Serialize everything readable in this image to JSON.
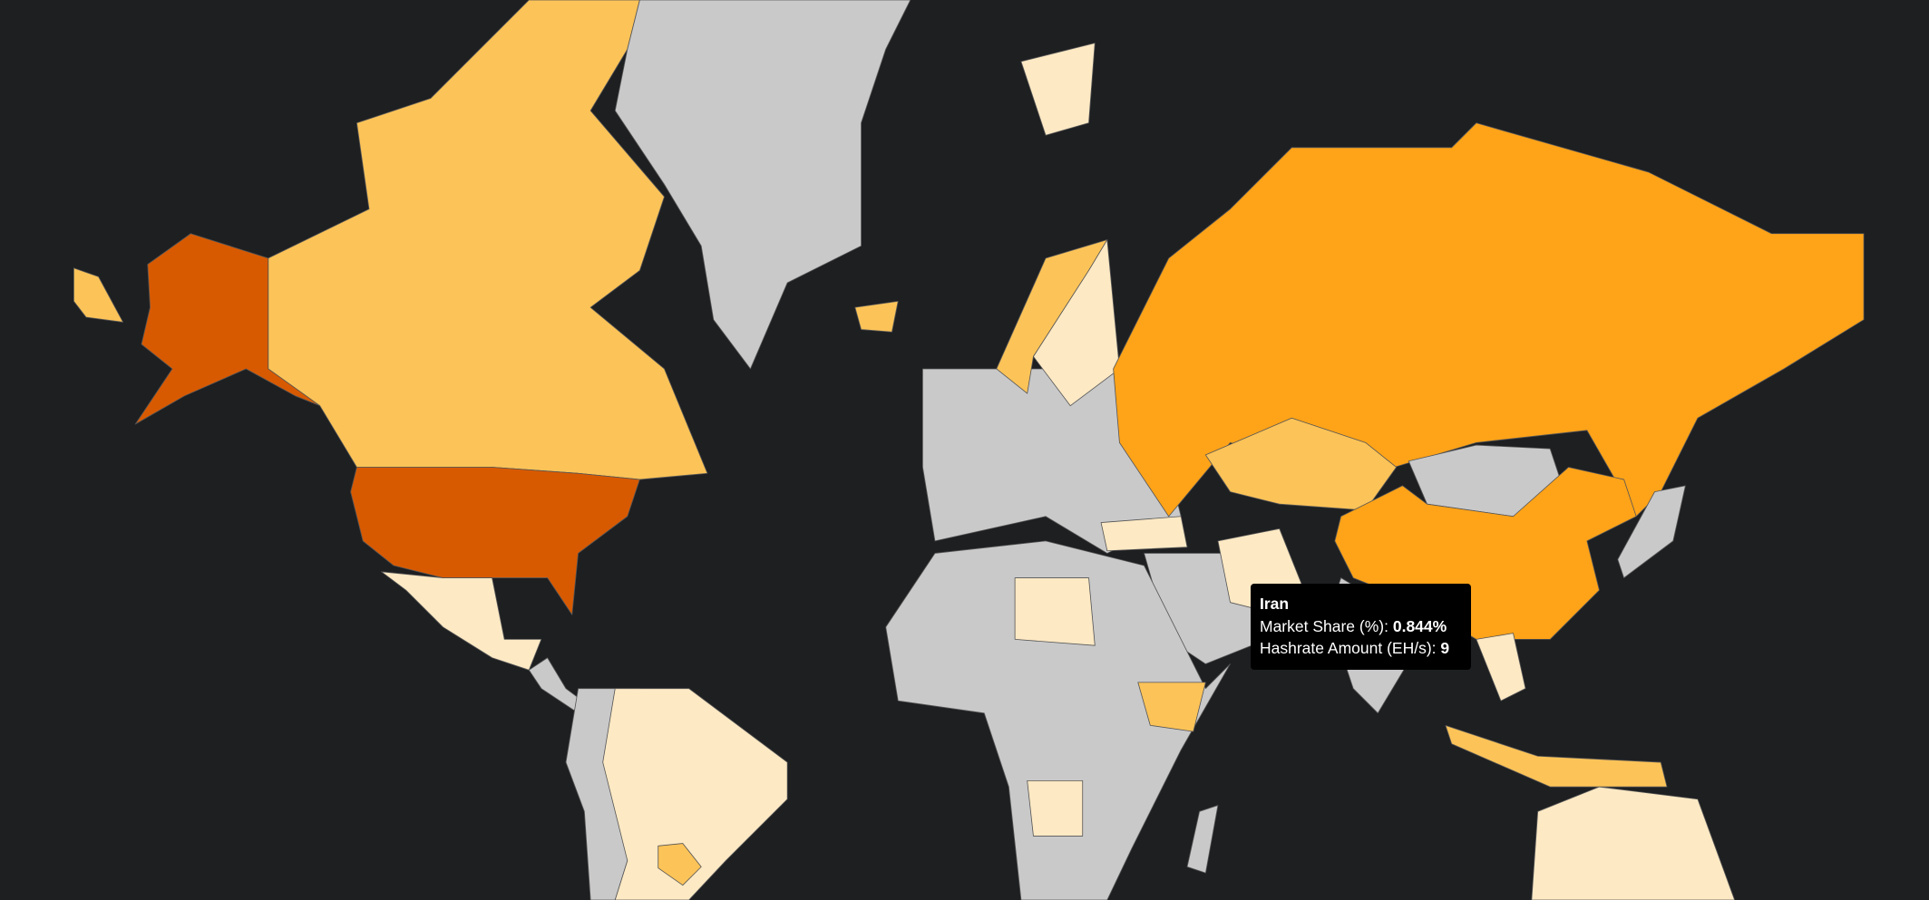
{
  "tooltip": {
    "title": "Iran",
    "rows": [
      {
        "label": "Market Share (%):",
        "value": "0.844%"
      },
      {
        "label": "Hashrate Amount (EH/s):",
        "value": "9"
      }
    ]
  }
}
